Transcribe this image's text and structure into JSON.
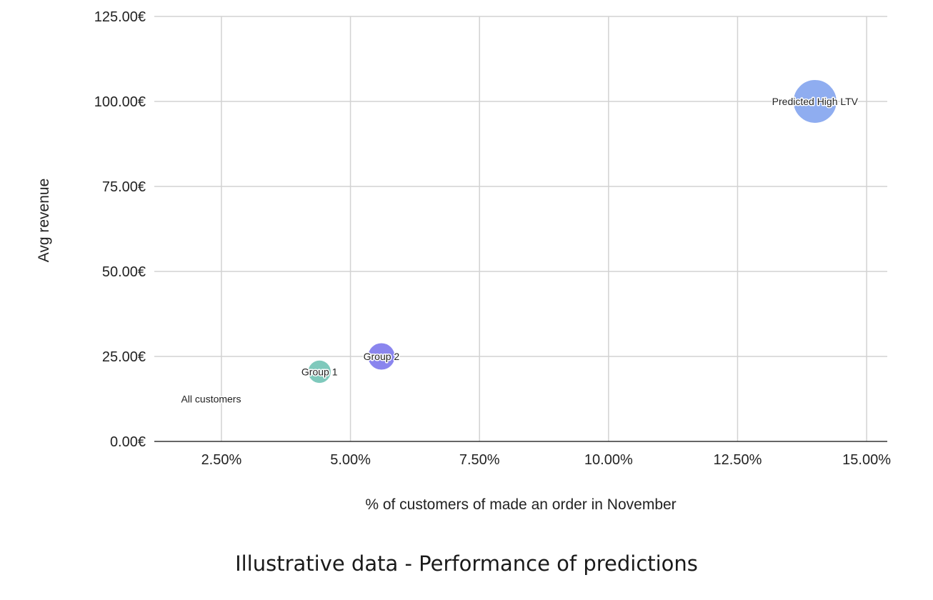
{
  "caption": "Illustrative data - Performance of predictions",
  "chart_data": {
    "type": "scatter",
    "variant": "bubble",
    "title": "",
    "xlabel": "% of customers of made an order in November",
    "ylabel": "Avg revenue",
    "xlim": [
      0.012,
      0.154
    ],
    "ylim": [
      0,
      125
    ],
    "x_ticks": [
      0.025,
      0.05,
      0.075,
      0.1,
      0.125,
      0.15
    ],
    "x_tick_labels": [
      "2.50%",
      "5.00%",
      "7.50%",
      "10.00%",
      "12.50%",
      "15.00%"
    ],
    "y_ticks": [
      0,
      25,
      50,
      75,
      100,
      125
    ],
    "y_tick_labels": [
      "0.00€",
      "25.00€",
      "50.00€",
      "75.00€",
      "100.00€",
      "125.00€"
    ],
    "grid": true,
    "legend": "none",
    "points": [
      {
        "label": "All customers",
        "x": 0.023,
        "y": 12.5,
        "size": 0,
        "color": "#ffffff"
      },
      {
        "label": "Group 1",
        "x": 0.044,
        "y": 20.5,
        "size": 1.3,
        "color": "#7fc9bc"
      },
      {
        "label": "Group 2",
        "x": 0.056,
        "y": 25,
        "size": 1.8,
        "color": "#8a85ee"
      },
      {
        "label": "Predicted High LTV",
        "x": 0.14,
        "y": 100,
        "size": 4.6,
        "color": "#8fadf0"
      }
    ]
  }
}
